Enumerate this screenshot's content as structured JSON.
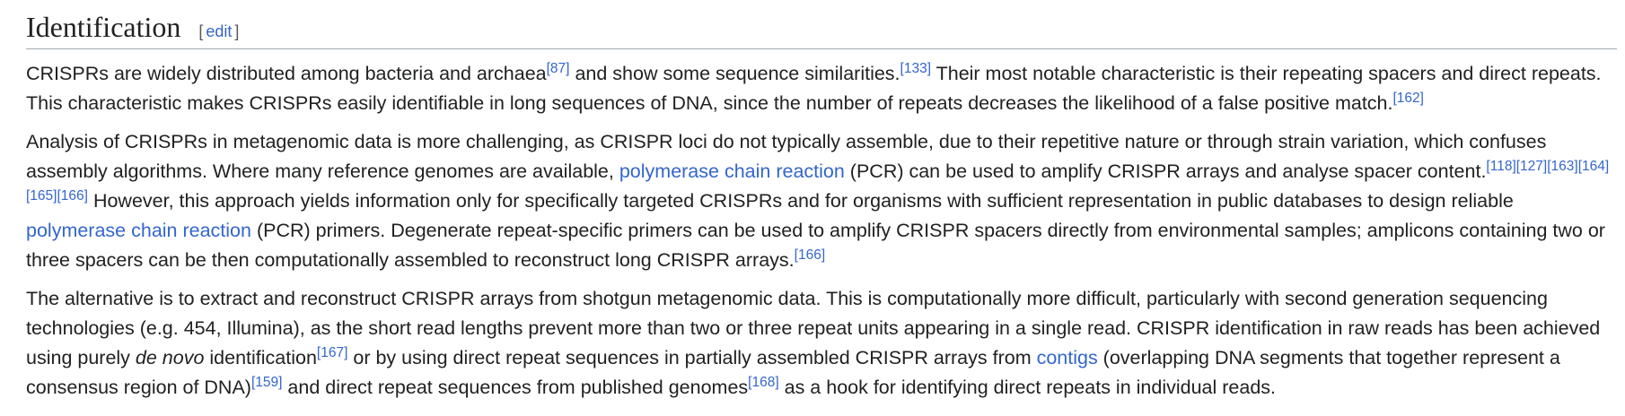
{
  "section": {
    "title": "Identification",
    "edit_open": "[",
    "edit_label": "edit",
    "edit_close": "]"
  },
  "p1": {
    "t1": "CRISPRs are widely distributed among bacteria and archaea",
    "r1": "[87]",
    "t2": " and show some sequence similarities.",
    "r2": "[133]",
    "t3": " Their most notable characteristic is their repeating spacers and direct repeats. This characteristic makes CRISPRs easily identifiable in long sequences of DNA, since the number of repeats decreases the likelihood of a false positive match.",
    "r3": "[162]"
  },
  "p2": {
    "t1": "Analysis of CRISPRs in metagenomic data is more challenging, as CRISPR loci do not typically assemble, due to their repetitive nature or through strain variation, which confuses assembly algorithms. Where many reference genomes are available, ",
    "l1": "polymerase chain reaction",
    "t2": " (PCR) can be used to amplify CRISPR arrays and analyse spacer content.",
    "r1": "[118]",
    "r2": "[127]",
    "r3": "[163]",
    "r4": "[164]",
    "r5": "[165]",
    "r6": "[166]",
    "t3": " However, this approach yields information only for specifically targeted CRISPRs and for organisms with sufficient representation in public databases to design reliable ",
    "l2": "polymerase chain reaction",
    "t4": " (PCR) primers. Degenerate repeat-specific primers can be used to amplify CRISPR spacers directly from environmental samples; amplicons containing two or three spacers can be then computationally assembled to reconstruct long CRISPR arrays.",
    "r7": "[166]"
  },
  "p3": {
    "t1": "The alternative is to extract and reconstruct CRISPR arrays from shotgun metagenomic data. This is computationally more difficult, particularly with second generation sequencing technologies (e.g. 454, Illumina), as the short read lengths prevent more than two or three repeat units appearing in a single read. CRISPR identification in raw reads has been achieved using purely ",
    "i1": "de novo",
    "t2": " identification",
    "r1": "[167]",
    "t3": " or by using direct repeat sequences in partially assembled CRISPR arrays from ",
    "l1": "contigs",
    "t4": " (overlapping DNA segments that together represent a consensus region of DNA)",
    "r2": "[159]",
    "t5": " and direct repeat sequences from published genomes",
    "r3": "[168]",
    "t6": " as a hook for identifying direct repeats in individual reads."
  }
}
